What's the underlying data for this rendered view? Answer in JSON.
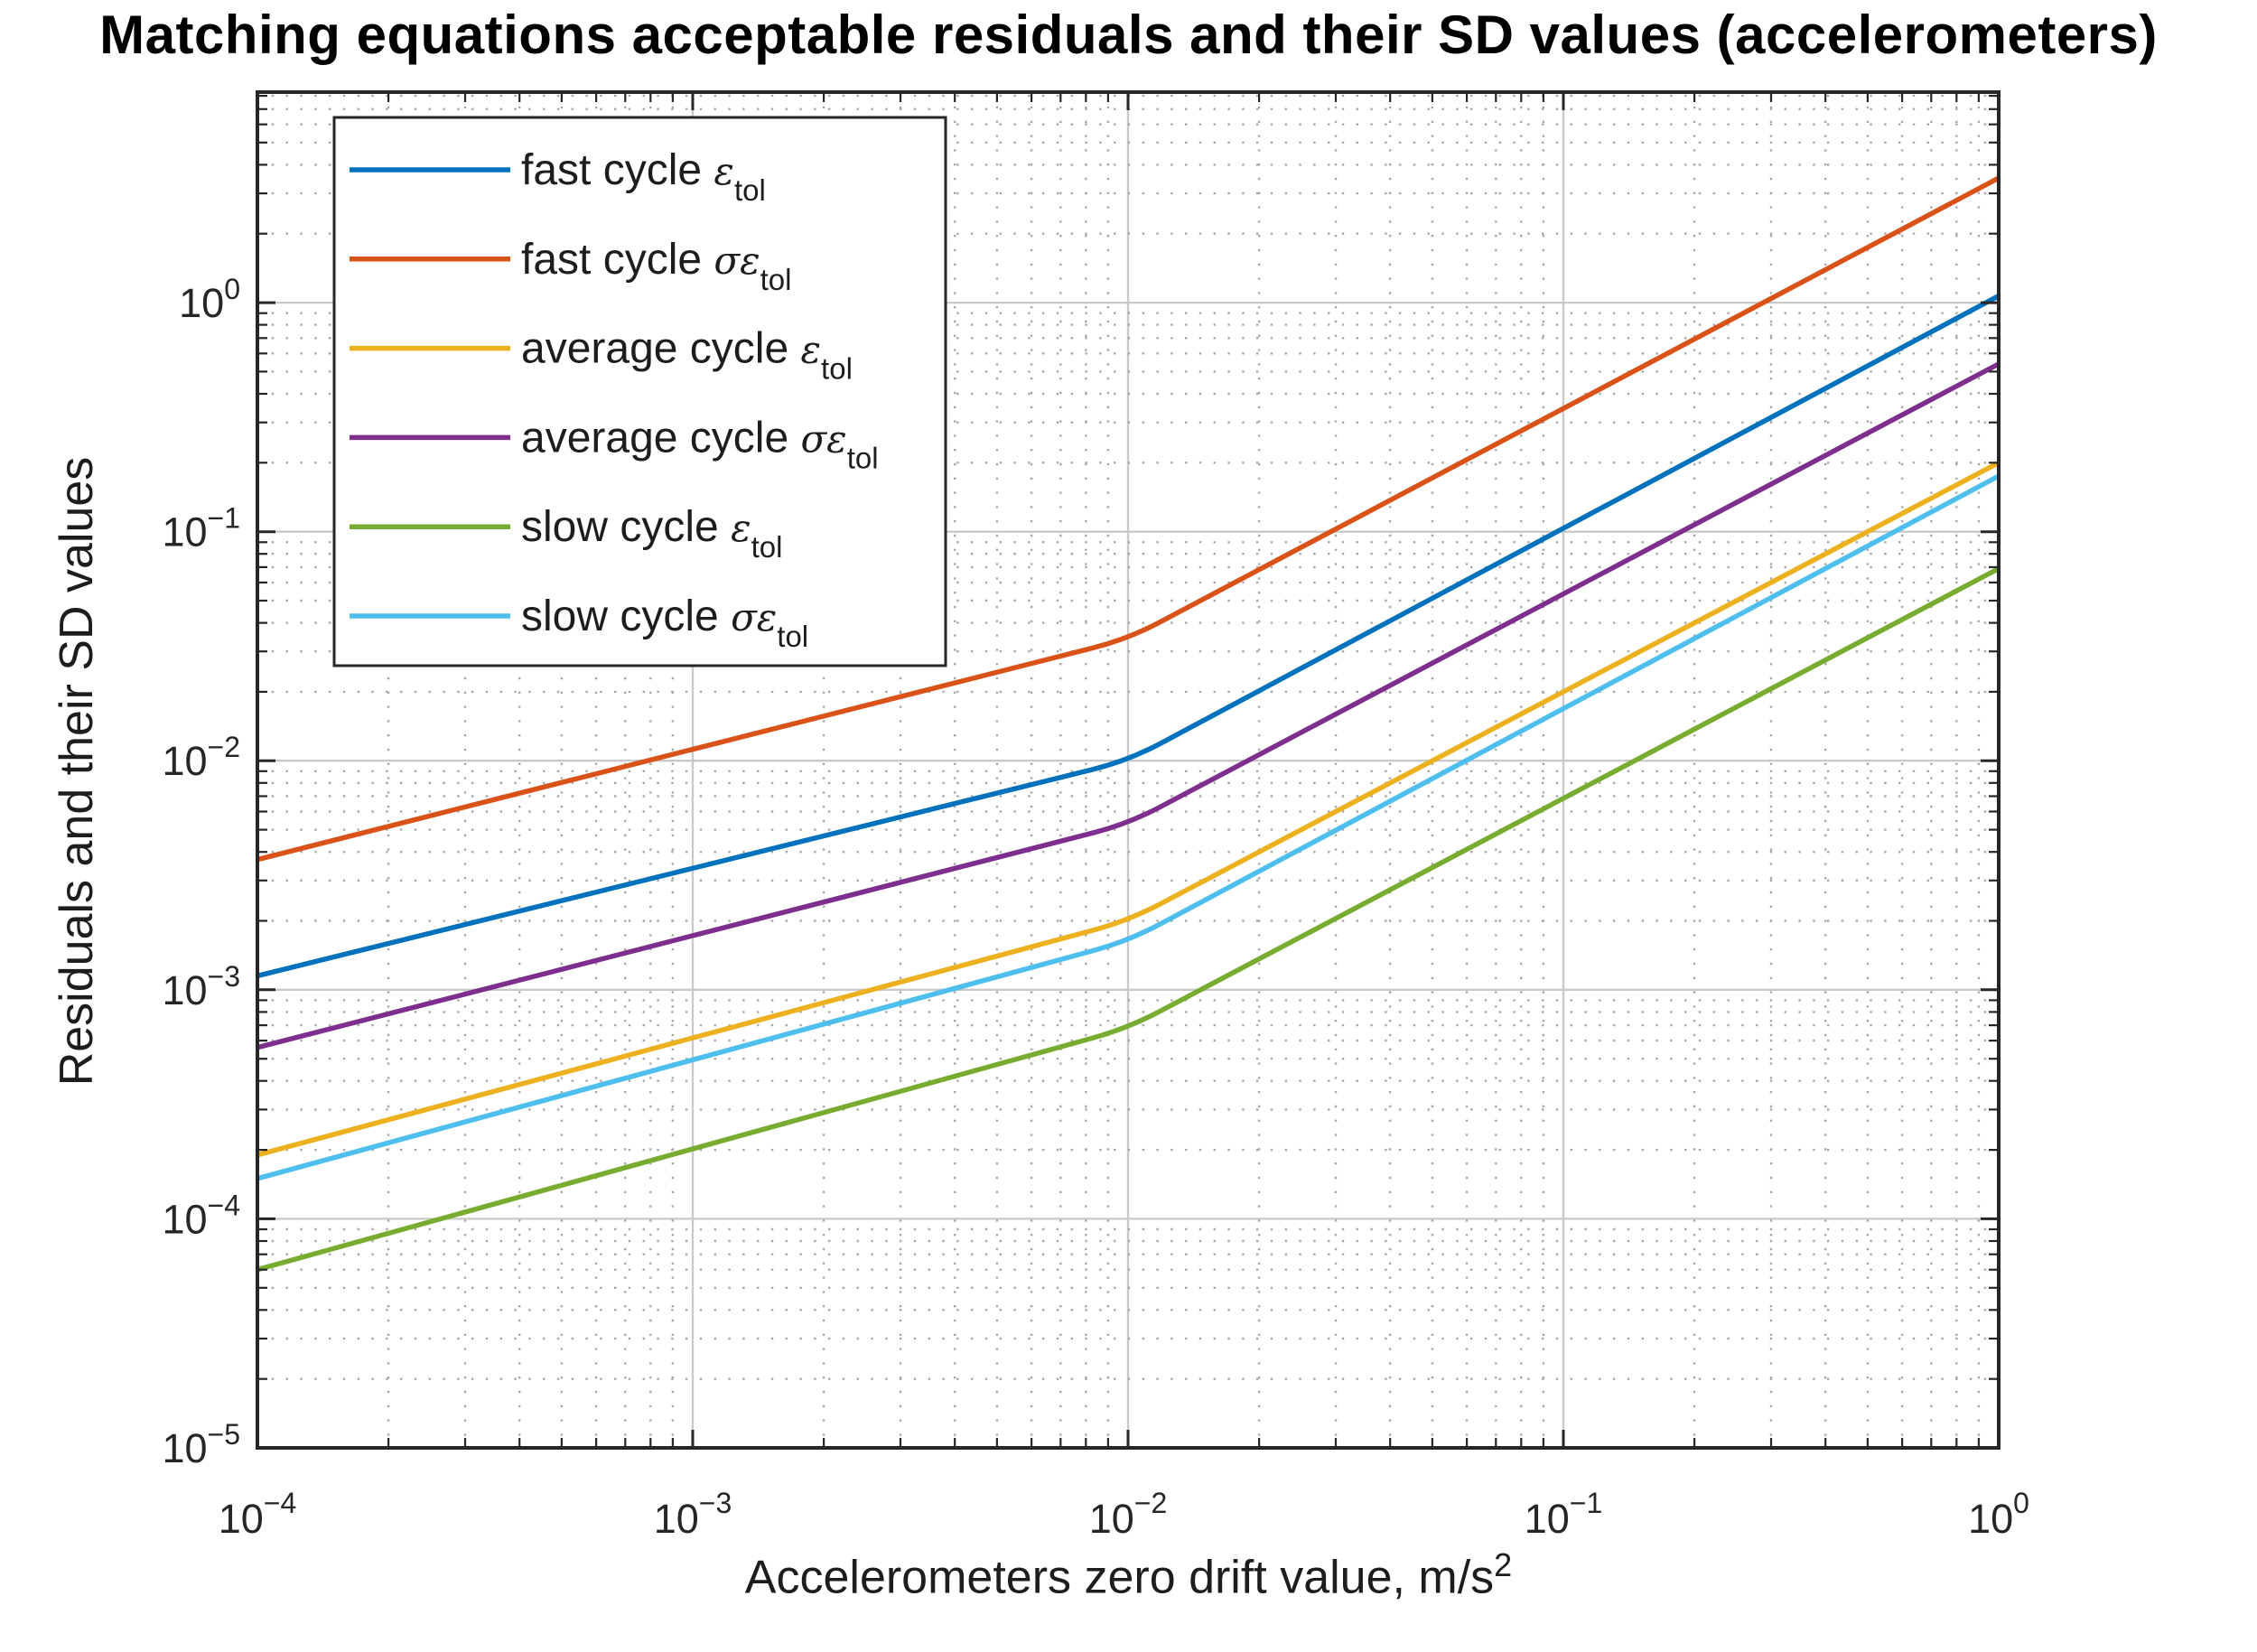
{
  "chart_data": {
    "type": "line",
    "title": "Matching equations acceptable residuals and their SD values (accelerometers)",
    "xlabel": "Accelerometers zero drift value, m/s",
    "xlabel_sup": "2",
    "ylabel": "Residuals and their SD values",
    "xscale": "log",
    "yscale": "log",
    "xlim": [
      0.0001,
      1
    ],
    "ylim": [
      1e-05,
      8.3
    ],
    "grid": {
      "major": true,
      "minor": true
    },
    "legend_position": "top-left",
    "tick_base": "10",
    "xticks": [
      {
        "value": 0.0001,
        "exp": "−4"
      },
      {
        "value": 0.001,
        "exp": "−3"
      },
      {
        "value": 0.01,
        "exp": "−2"
      },
      {
        "value": 0.1,
        "exp": "−1"
      },
      {
        "value": 1,
        "exp": "0"
      }
    ],
    "yticks": [
      {
        "value": 1,
        "exp": "0"
      },
      {
        "value": 0.1,
        "exp": "−1"
      },
      {
        "value": 0.01,
        "exp": "−2"
      },
      {
        "value": 0.001,
        "exp": "−3"
      },
      {
        "value": 0.0001,
        "exp": "−4"
      },
      {
        "value": 1e-05,
        "exp": "−5"
      }
    ],
    "x": [
      0.0001,
      0.01,
      1
    ],
    "series": [
      {
        "name": "fast cycle ε_tol",
        "label_prefix": "fast cycle",
        "symbol": "ε",
        "symbol_sub": "tol",
        "color": "#0072BD",
        "values": [
          0.00115,
          0.01,
          1.07
        ]
      },
      {
        "name": "fast cycle σε_tol",
        "label_prefix": "fast cycle",
        "symbol": "σε",
        "symbol_sub": "tol",
        "color": "#D95319",
        "values": [
          0.0037,
          0.034,
          3.5
        ]
      },
      {
        "name": "average cycle ε_tol",
        "label_prefix": "average cycle",
        "symbol": "ε",
        "symbol_sub": "tol",
        "color": "#EDB120",
        "values": [
          0.00019,
          0.002,
          0.2
        ]
      },
      {
        "name": "average cycle σε_tol",
        "label_prefix": "average cycle",
        "symbol": "σε",
        "symbol_sub": "tol",
        "color": "#7E2F8E",
        "values": [
          0.00056,
          0.0053,
          0.54
        ]
      },
      {
        "name": "slow cycle ε_tol",
        "label_prefix": "slow cycle",
        "symbol": "ε",
        "symbol_sub": "tol",
        "color": "#77AC30",
        "values": [
          6e-05,
          0.00068,
          0.069
        ]
      },
      {
        "name": "slow cycle σε_tol",
        "label_prefix": "slow cycle",
        "symbol": "σε",
        "symbol_sub": "tol",
        "color": "#4DBEEE",
        "values": [
          0.00015,
          0.00163,
          0.175
        ]
      }
    ]
  }
}
